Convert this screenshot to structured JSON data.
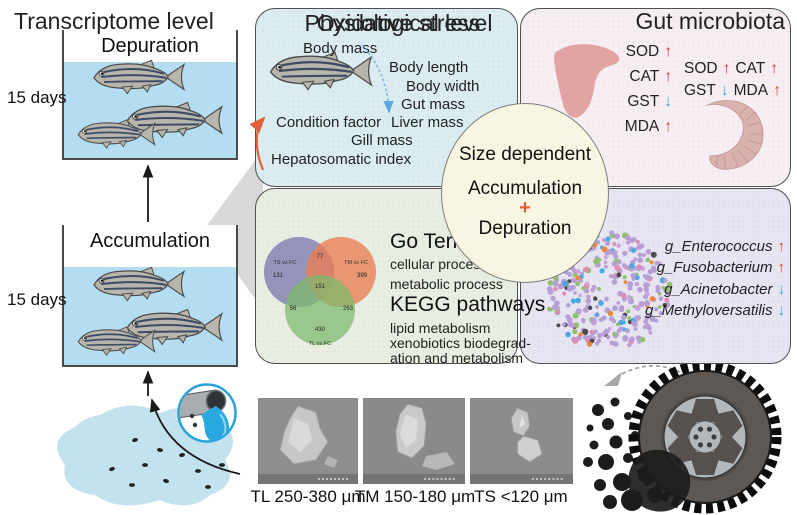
{
  "left_flow": {
    "depuration": {
      "title": "Depuration",
      "duration": "15 days"
    },
    "accumulation": {
      "title": "Accumulation",
      "duration": "15 days"
    }
  },
  "center_circle": {
    "line1": "Size dependent",
    "line2": "Accumulation",
    "plus": "+",
    "line3": "Depuration"
  },
  "physiological": {
    "title": "Physiological level",
    "items": [
      "Body mass",
      "Body length",
      "Body width",
      "Gut mass",
      "Liver mass",
      "Gill mass",
      "Condition factor",
      "Hepatosomatic index"
    ]
  },
  "oxidative": {
    "title": "Oxidative stress",
    "liver_markers": [
      {
        "name": "SOD",
        "arrow": "↑"
      },
      {
        "name": "CAT",
        "arrow": "↑"
      },
      {
        "name": "GST",
        "arrow": "↓"
      },
      {
        "name": "MDA",
        "arrow": "↑"
      }
    ],
    "intestine_markers": [
      {
        "name": "SOD",
        "arrow": "↑"
      },
      {
        "name": "CAT",
        "arrow": "↑"
      },
      {
        "name": "GST",
        "arrow": "↓"
      },
      {
        "name": "MDA",
        "arrow": "↑"
      }
    ]
  },
  "transcriptome": {
    "title": "Transcriptome level",
    "go_heading": "Go Terms",
    "go_terms": [
      "cellular process",
      "metabolic process"
    ],
    "kegg_heading": "KEGG pathways",
    "kegg_lines": [
      "lipid metabolism",
      "xenobiotics biodegrad-",
      "ation and metabolism"
    ],
    "venn": {
      "set_labels": [
        "TS vs FC",
        "TM vs FC",
        "TL vs FC"
      ],
      "counts": [
        "131",
        "77",
        "399",
        "56",
        "151",
        "263",
        "430"
      ]
    }
  },
  "microbiota": {
    "title": "Gut microbiota",
    "genera": [
      {
        "name": "g_Enterococcus",
        "arrow": "↑"
      },
      {
        "name": "g_Fusobacterium",
        "arrow": "↑"
      },
      {
        "name": "g_Acinetobacter",
        "arrow": "↓"
      },
      {
        "name": "g_Methyloversatilis",
        "arrow": "↓"
      }
    ]
  },
  "particles": {
    "labels": [
      "TL 250-380 μm",
      "TM 150-180 μm",
      "TS <120 μm"
    ]
  },
  "colors": {
    "increase": "#d93a2b",
    "decrease": "#2f9fd8",
    "water": "#b4ddf1",
    "physiological_bg": "#dcedf2",
    "oxidative_bg": "#f6eef3",
    "transcriptome_bg": "#e9eee3",
    "microbiota_bg": "#e7e5f2",
    "circle_bg": "#f8f6e2",
    "liver": "#e2a3a3"
  }
}
